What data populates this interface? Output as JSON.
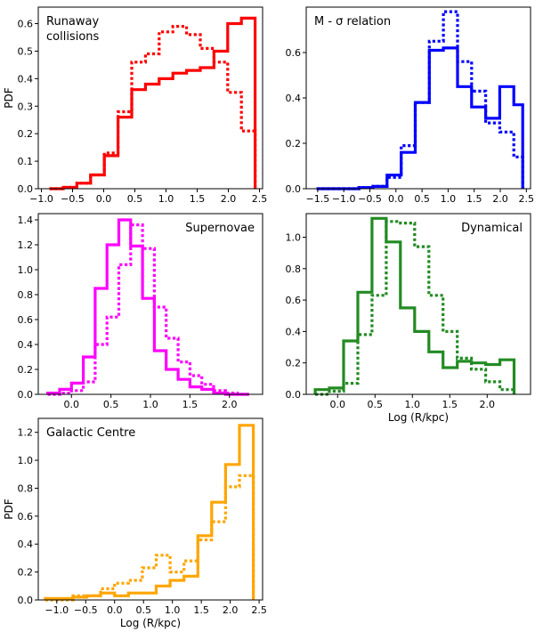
{
  "figure": {
    "ylabel_left": "PDF",
    "xlabel_bottom": "Log (R/kpc)"
  },
  "chart_data": [
    {
      "type": "histogram",
      "title": "Runaway collisions",
      "title_lines": [
        "Runaway",
        "collisions"
      ],
      "title_position": "top-left",
      "color": "#ff0000",
      "xlabel": "",
      "ylabel": "PDF",
      "xlim": [
        -1.05,
        2.55
      ],
      "ylim": [
        0,
        0.66
      ],
      "xticks": [
        -1.0,
        -0.5,
        0.0,
        0.5,
        1.0,
        1.5,
        2.0,
        2.5
      ],
      "xtick_labels": [
        "−1.0",
        "−0.5",
        "0.0",
        "0.5",
        "1.0",
        "1.5",
        "2.0",
        "2.5"
      ],
      "yticks": [
        0.0,
        0.1,
        0.2,
        0.3,
        0.4,
        0.5,
        0.6
      ],
      "ytick_labels": [
        "0.0",
        "0.1",
        "0.2",
        "0.3",
        "0.4",
        "0.5",
        "0.6"
      ],
      "series": [
        {
          "name": "solid",
          "style": "solid",
          "edges": [
            -0.87,
            -0.65,
            -0.43,
            -0.21,
            0.01,
            0.23,
            0.45,
            0.67,
            0.89,
            1.11,
            1.33,
            1.55,
            1.77,
            1.99,
            2.21,
            2.43
          ],
          "values": [
            0.0,
            0.005,
            0.02,
            0.05,
            0.12,
            0.26,
            0.36,
            0.38,
            0.4,
            0.42,
            0.43,
            0.44,
            0.5,
            0.6,
            0.62
          ]
        },
        {
          "name": "dotted",
          "style": "dotted",
          "edges": [
            -0.87,
            -0.65,
            -0.43,
            -0.21,
            0.01,
            0.23,
            0.45,
            0.67,
            0.89,
            1.11,
            1.33,
            1.55,
            1.77,
            1.99,
            2.21,
            2.43
          ],
          "values": [
            0.0,
            0.005,
            0.02,
            0.05,
            0.13,
            0.28,
            0.46,
            0.49,
            0.57,
            0.59,
            0.56,
            0.51,
            0.46,
            0.35,
            0.21
          ]
        }
      ]
    },
    {
      "type": "histogram",
      "title": "M - σ relation",
      "title_lines": [
        "M - σ relation"
      ],
      "title_position": "top-left",
      "color": "#0000ff",
      "xlabel": "",
      "ylabel": "",
      "xlim": [
        -1.72,
        2.58
      ],
      "ylim": [
        0,
        0.8
      ],
      "xticks": [
        -1.5,
        -1.0,
        -0.5,
        0.0,
        0.5,
        1.0,
        1.5,
        2.0,
        2.5
      ],
      "xtick_labels": [
        "−1.5",
        "−1.0",
        "−0.5",
        "0.0",
        "0.5",
        "1.0",
        "1.5",
        "2.0",
        "2.5"
      ],
      "yticks": [
        0.0,
        0.2,
        0.4,
        0.6
      ],
      "ytick_labels": [
        "0.0",
        "0.2",
        "0.4",
        "0.6"
      ],
      "series": [
        {
          "name": "solid",
          "style": "solid",
          "edges": [
            -1.52,
            -1.25,
            -0.98,
            -0.71,
            -0.44,
            -0.17,
            0.1,
            0.37,
            0.64,
            0.91,
            1.18,
            1.45,
            1.72,
            1.99,
            2.26,
            2.43
          ],
          "values": [
            0.0,
            0.0,
            0.0,
            0.005,
            0.01,
            0.06,
            0.16,
            0.38,
            0.61,
            0.62,
            0.45,
            0.36,
            0.31,
            0.45,
            0.37
          ]
        },
        {
          "name": "dotted",
          "style": "dotted",
          "edges": [
            -1.52,
            -1.25,
            -0.98,
            -0.71,
            -0.44,
            -0.17,
            0.1,
            0.37,
            0.64,
            0.91,
            1.18,
            1.45,
            1.72,
            1.99,
            2.26,
            2.43
          ],
          "values": [
            0.0,
            0.0,
            0.0,
            0.005,
            0.01,
            0.05,
            0.19,
            0.38,
            0.65,
            0.78,
            0.56,
            0.43,
            0.29,
            0.25,
            0.14
          ]
        }
      ]
    },
    {
      "type": "histogram",
      "title": "Supernovae",
      "title_lines": [
        "Supernovae"
      ],
      "title_position": "top-right",
      "color": "#ff00ff",
      "xlabel": "",
      "ylabel": "",
      "xlim": [
        -0.42,
        2.42
      ],
      "ylim": [
        0,
        1.45
      ],
      "xticks": [
        0.0,
        0.5,
        1.0,
        1.5,
        2.0
      ],
      "xtick_labels": [
        "0.0",
        "0.5",
        "1.0",
        "1.5",
        "2.0"
      ],
      "yticks": [
        0.0,
        0.2,
        0.4,
        0.6,
        0.8,
        1.0,
        1.2,
        1.4
      ],
      "ytick_labels": [
        "0.0",
        "0.2",
        "0.4",
        "0.6",
        "0.8",
        "1.0",
        "1.2",
        "1.4"
      ],
      "series": [
        {
          "name": "solid",
          "style": "solid",
          "edges": [
            -0.3,
            -0.15,
            0.0,
            0.15,
            0.3,
            0.45,
            0.6,
            0.75,
            0.9,
            1.05,
            1.2,
            1.35,
            1.5,
            1.65,
            1.8,
            1.95,
            2.1,
            2.25
          ],
          "values": [
            0.01,
            0.04,
            0.09,
            0.3,
            0.85,
            1.2,
            1.4,
            1.19,
            0.77,
            0.35,
            0.2,
            0.12,
            0.06,
            0.04,
            0.01,
            0.0,
            0.0
          ]
        },
        {
          "name": "dotted",
          "style": "dotted",
          "edges": [
            -0.3,
            -0.15,
            0.0,
            0.15,
            0.3,
            0.45,
            0.6,
            0.75,
            0.9,
            1.05,
            1.2,
            1.35,
            1.5,
            1.65,
            1.8,
            1.95,
            2.1,
            2.25
          ],
          "values": [
            0.0,
            0.01,
            0.03,
            0.1,
            0.4,
            0.62,
            1.04,
            1.36,
            1.17,
            0.7,
            0.45,
            0.26,
            0.15,
            0.08,
            0.03,
            0.01,
            0.0
          ]
        }
      ]
    },
    {
      "type": "histogram",
      "title": "Dynamical",
      "title_lines": [
        "Dynamical"
      ],
      "title_position": "top-right",
      "color": "#228b22",
      "xlabel": "Log (R/kpc)",
      "ylabel": "",
      "xlim": [
        -0.42,
        2.58
      ],
      "ylim": [
        0,
        1.15
      ],
      "xticks": [
        0.0,
        0.5,
        1.0,
        1.5,
        2.0
      ],
      "xtick_labels": [
        "0.0",
        "0.5",
        "1.0",
        "1.5",
        "2.0"
      ],
      "yticks": [
        0.0,
        0.2,
        0.4,
        0.6,
        0.8,
        1.0
      ],
      "ytick_labels": [
        "0.0",
        "0.2",
        "0.4",
        "0.6",
        "0.8",
        "1.0"
      ],
      "series": [
        {
          "name": "solid",
          "style": "solid",
          "edges": [
            -0.3,
            -0.11,
            0.08,
            0.27,
            0.46,
            0.65,
            0.84,
            1.03,
            1.22,
            1.41,
            1.6,
            1.79,
            1.98,
            2.17,
            2.36
          ],
          "values": [
            0.03,
            0.04,
            0.34,
            0.65,
            1.12,
            0.97,
            0.55,
            0.4,
            0.27,
            0.17,
            0.21,
            0.2,
            0.19,
            0.22
          ]
        },
        {
          "name": "dotted",
          "style": "dotted",
          "edges": [
            -0.3,
            -0.11,
            0.08,
            0.27,
            0.46,
            0.65,
            0.84,
            1.03,
            1.22,
            1.41,
            1.6,
            1.79,
            1.98,
            2.17,
            2.36
          ],
          "values": [
            0.0,
            0.02,
            0.07,
            0.38,
            0.63,
            1.1,
            1.09,
            0.94,
            0.63,
            0.4,
            0.23,
            0.16,
            0.08,
            0.03
          ]
        }
      ]
    },
    {
      "type": "histogram",
      "title": "Galactic Centre",
      "title_lines": [
        "Galactic Centre"
      ],
      "title_position": "top-left",
      "color": "#ffa500",
      "xlabel": "Log (R/kpc)",
      "ylabel": "PDF",
      "xlim": [
        -1.32,
        2.56
      ],
      "ylim": [
        0,
        1.3
      ],
      "xticks": [
        -1.0,
        -0.5,
        0.0,
        0.5,
        1.0,
        1.5,
        2.0,
        2.5
      ],
      "xtick_labels": [
        "−1.0",
        "−0.5",
        "0.0",
        "0.5",
        "1.0",
        "1.5",
        "2.0",
        "2.5"
      ],
      "yticks": [
        0.0,
        0.2,
        0.4,
        0.6,
        0.8,
        1.0,
        1.2
      ],
      "ytick_labels": [
        "0.0",
        "0.2",
        "0.4",
        "0.6",
        "0.8",
        "1.0",
        "1.2"
      ],
      "series": [
        {
          "name": "solid",
          "style": "solid",
          "edges": [
            -1.2,
            -0.96,
            -0.72,
            -0.48,
            -0.24,
            0.0,
            0.24,
            0.48,
            0.72,
            0.96,
            1.2,
            1.44,
            1.68,
            1.92,
            2.16,
            2.4
          ],
          "values": [
            0.01,
            0.01,
            0.02,
            0.03,
            0.05,
            0.03,
            0.05,
            0.05,
            0.1,
            0.14,
            0.17,
            0.46,
            0.7,
            0.97,
            1.25
          ]
        },
        {
          "name": "dotted",
          "style": "dotted",
          "edges": [
            -1.2,
            -0.96,
            -0.72,
            -0.48,
            -0.24,
            0.0,
            0.24,
            0.48,
            0.72,
            0.96,
            1.2,
            1.44,
            1.68,
            1.92,
            2.16,
            2.4
          ],
          "values": [
            0.0,
            0.0,
            0.03,
            0.03,
            0.08,
            0.12,
            0.14,
            0.23,
            0.32,
            0.2,
            0.28,
            0.43,
            0.56,
            0.81,
            0.89
          ]
        }
      ]
    }
  ]
}
